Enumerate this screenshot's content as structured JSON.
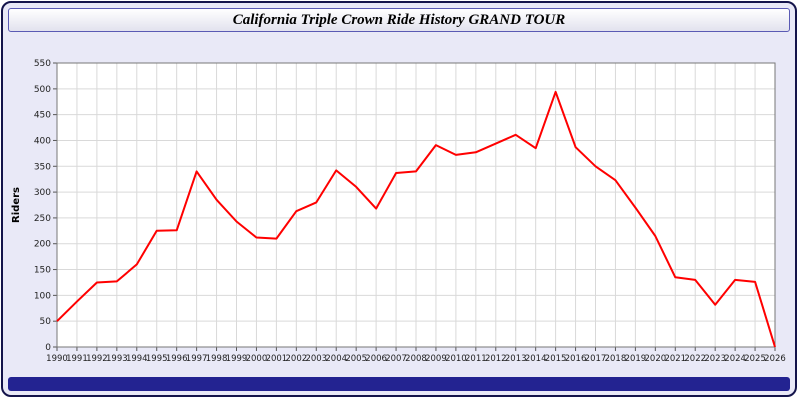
{
  "window": {
    "title": "California Triple Crown Ride History GRAND TOUR"
  },
  "colors": {
    "line": "#ff0000",
    "grid": "#d9d9d9",
    "plot_background": "#ffffff",
    "page_background": "#e9e9f7",
    "frame_border": "#14144b",
    "title_bar_border": "#5a5ab4",
    "bottom_bar": "#232391",
    "tick_text": "#222222"
  },
  "chart_data": {
    "type": "line",
    "title": "California Triple Crown Ride History GRAND TOUR",
    "xlabel": "",
    "ylabel": "Riders",
    "ylim": [
      0,
      550
    ],
    "ytick_step": 50,
    "grid": true,
    "legend": "none",
    "x": [
      1990,
      1991,
      1992,
      1993,
      1994,
      1995,
      1996,
      1997,
      1998,
      1999,
      2000,
      2001,
      2002,
      2003,
      2004,
      2005,
      2006,
      2007,
      2008,
      2009,
      2010,
      2011,
      2012,
      2013,
      2014,
      2015,
      2016,
      2017,
      2018,
      2019,
      2020,
      2021,
      2022,
      2023,
      2024,
      2025,
      2026
    ],
    "series": [
      {
        "name": "Riders",
        "values": [
          50,
          88,
          125,
          127,
          160,
          225,
          226,
          340,
          285,
          243,
          212,
          210,
          263,
          280,
          342,
          310,
          268,
          337,
          340,
          391,
          372,
          377,
          394,
          411,
          385,
          494,
          387,
          350,
          323,
          270,
          215,
          135,
          130,
          82,
          130,
          126,
          0
        ]
      }
    ]
  }
}
